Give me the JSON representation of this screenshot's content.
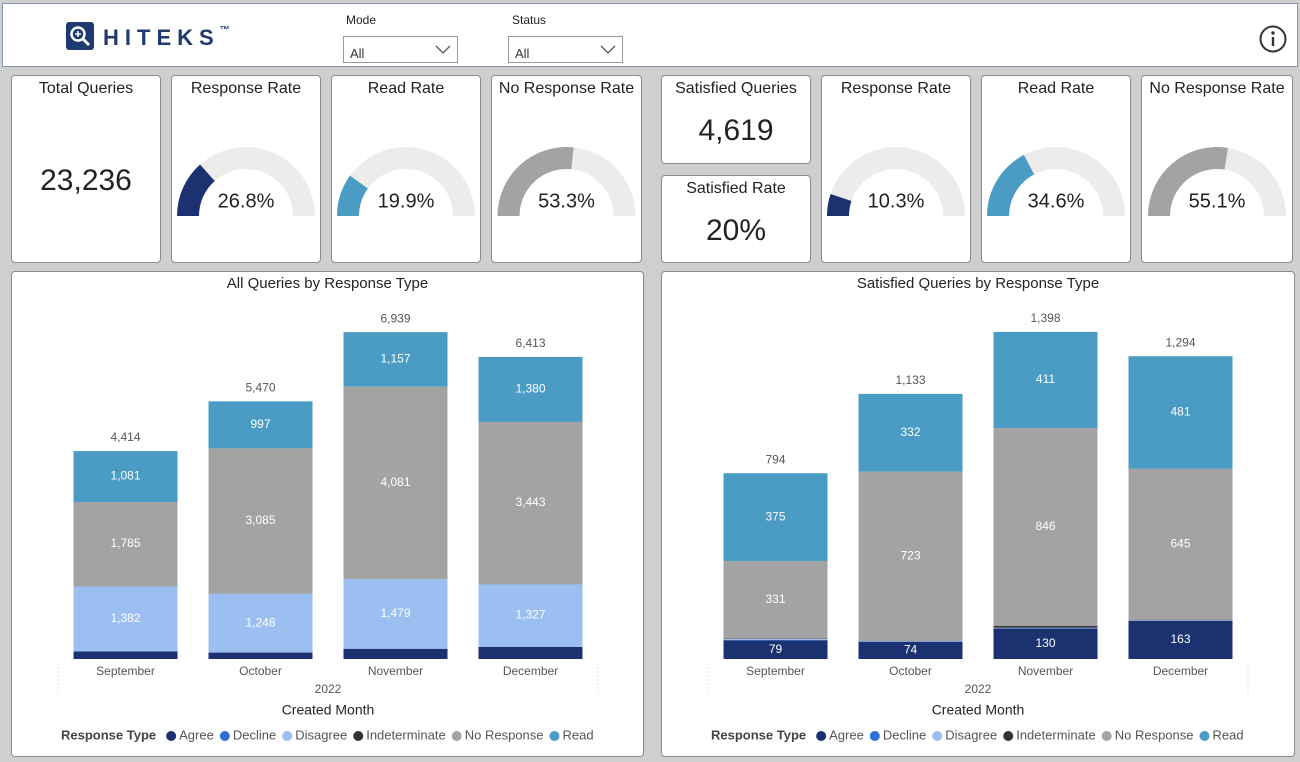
{
  "header": {
    "brand": "HITEKS",
    "trademark": "™",
    "filters": [
      {
        "label": "Mode",
        "value": "All"
      },
      {
        "label": "Status",
        "value": "All"
      }
    ]
  },
  "cards": [
    {
      "title": "Total Queries",
      "type": "number",
      "value": 23236,
      "value_label": "23,236"
    },
    {
      "title": "Response Rate",
      "type": "gauge",
      "value": 26.8,
      "value_label": "26.8%",
      "range": [
        0,
        100
      ],
      "color": "#1b3170"
    },
    {
      "title": "Read Rate",
      "type": "gauge",
      "value": 19.9,
      "value_label": "19.9%",
      "range": [
        0,
        100
      ],
      "color": "#4a9cc4"
    },
    {
      "title": "No Response Rate",
      "type": "gauge",
      "value": 53.3,
      "value_label": "53.3%",
      "range": [
        0,
        100
      ],
      "color": "#a3a3a3"
    },
    {
      "title": "Satisfied Queries",
      "type": "number",
      "value": 4619,
      "value_label": "4,619"
    },
    {
      "title": "Satisfied Rate",
      "type": "number",
      "value": 20,
      "value_label": "20%"
    },
    {
      "title": "Response Rate",
      "type": "gauge",
      "value": 10.3,
      "value_label": "10.3%",
      "range": [
        0,
        100
      ],
      "color": "#1b3170"
    },
    {
      "title": "Read Rate",
      "type": "gauge",
      "value": 34.6,
      "value_label": "34.6%",
      "range": [
        0,
        100
      ],
      "color": "#4a9cc4"
    },
    {
      "title": "No Response Rate",
      "type": "gauge",
      "value": 55.1,
      "value_label": "55.1%",
      "range": [
        0,
        100
      ],
      "color": "#a3a3a3"
    }
  ],
  "chart_data": [
    {
      "type": "stacked_bar",
      "title": "All Queries by Response Type",
      "categories": [
        "September",
        "October",
        "November",
        "December"
      ],
      "x_group_label": "2022",
      "x_label": "Created Month",
      "legend_title": "Response Type",
      "ylim": [
        0,
        7600
      ],
      "series": [
        {
          "name": "Agree",
          "color": "#1b3170",
          "values": [
            160,
            136,
            216,
            257
          ],
          "value_labels": [
            null,
            null,
            null,
            null
          ]
        },
        {
          "name": "Decline",
          "color": "#2f6fd6",
          "values": [
            3,
            2,
            3,
            3
          ],
          "value_labels": [
            null,
            null,
            null,
            null
          ]
        },
        {
          "name": "Disagree",
          "color": "#9cbff2",
          "values": [
            1382,
            1248,
            1479,
            1327
          ],
          "value_labels": [
            "1,382",
            "1,248",
            "1,479",
            "1,327"
          ]
        },
        {
          "name": "Indeterminate",
          "color": "#333333",
          "values": [
            3,
            2,
            3,
            3
          ],
          "value_labels": [
            null,
            null,
            null,
            null
          ]
        },
        {
          "name": "No Response",
          "color": "#a3a3a3",
          "values": [
            1785,
            3085,
            4081,
            3443
          ],
          "value_labels": [
            "1,785",
            "3,085",
            "4,081",
            "3,443"
          ]
        },
        {
          "name": "Read",
          "color": "#4a9cc4",
          "values": [
            1081,
            997,
            1157,
            1380
          ],
          "value_labels": [
            "1,081",
            "997",
            "1,157",
            "1,380"
          ]
        }
      ],
      "totals": [
        4414,
        5470,
        6939,
        6413
      ],
      "total_labels": [
        "4,414",
        "5,470",
        "6,939",
        "6,413"
      ]
    },
    {
      "type": "stacked_bar",
      "title": "Satisfied Queries by Response Type",
      "categories": [
        "September",
        "October",
        "November",
        "December"
      ],
      "x_group_label": "2022",
      "x_label": "Created Month",
      "legend_title": "Response Type",
      "ylim": [
        0,
        1530
      ],
      "series": [
        {
          "name": "Agree",
          "color": "#1b3170",
          "values": [
            79,
            74,
            130,
            163
          ],
          "value_labels": [
            "79",
            "74",
            "130",
            "163"
          ]
        },
        {
          "name": "Decline",
          "color": "#2f6fd6",
          "values": [
            2,
            1,
            2,
            1
          ],
          "value_labels": [
            null,
            null,
            null,
            null
          ]
        },
        {
          "name": "Disagree",
          "color": "#9cbff2",
          "values": [
            5,
            2,
            2,
            2
          ],
          "value_labels": [
            null,
            null,
            null,
            null
          ]
        },
        {
          "name": "Indeterminate",
          "color": "#333333",
          "values": [
            2,
            1,
            7,
            2
          ],
          "value_labels": [
            null,
            null,
            null,
            null
          ]
        },
        {
          "name": "No Response",
          "color": "#a3a3a3",
          "values": [
            331,
            723,
            846,
            645
          ],
          "value_labels": [
            "331",
            "723",
            "846",
            "645"
          ]
        },
        {
          "name": "Read",
          "color": "#4a9cc4",
          "values": [
            375,
            332,
            411,
            481
          ],
          "value_labels": [
            "375",
            "332",
            "411",
            "481"
          ]
        }
      ],
      "totals": [
        794,
        1133,
        1398,
        1294
      ],
      "total_labels": [
        "794",
        "1,133",
        "1,398",
        "1,294"
      ]
    }
  ]
}
